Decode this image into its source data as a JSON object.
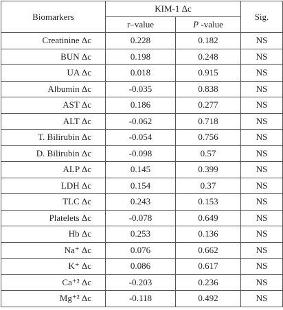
{
  "table": {
    "header": {
      "biomarkers": "Biomarkers",
      "group": "KIM-1 Δc",
      "sig": "Sig.",
      "r": "r–value",
      "p": {
        "italic": "P",
        "rest": " -value"
      }
    },
    "rows": [
      [
        "Creatinine Δc",
        "0.228",
        "0.182",
        "NS"
      ],
      [
        "BUN Δc",
        "0.198",
        "0.248",
        "NS"
      ],
      [
        "UA Δc",
        "0.018",
        "0.915",
        "NS"
      ],
      [
        "Albumin Δc",
        "-0.035",
        "0.838",
        "NS"
      ],
      [
        "AST Δc",
        "0.186",
        "0.277",
        "NS"
      ],
      [
        "ALT Δc",
        "-0.062",
        "0.718",
        "NS"
      ],
      [
        "T. Bilirubin Δc",
        "-0.054",
        "0.756",
        "NS"
      ],
      [
        "D. Bilirubin Δc",
        "-0.098",
        "0.57",
        "NS"
      ],
      [
        "ALP Δc",
        "0.145",
        "0.399",
        "NS"
      ],
      [
        "LDH Δc",
        "0.154",
        "0.37",
        "NS"
      ],
      [
        "TLC Δc",
        "0.243",
        "0.153",
        "NS"
      ],
      [
        "Platelets Δc",
        "-0.078",
        "0.649",
        "NS"
      ],
      [
        "Hb Δc",
        "0.253",
        "0.136",
        "NS"
      ],
      [
        "Na⁺ Δc",
        "0.076",
        "0.662",
        "NS"
      ],
      [
        "K⁺ Δc",
        "0.086",
        "0.617",
        "NS"
      ],
      [
        "Ca⁺² Δc",
        "-0.203",
        "0.236",
        "NS"
      ],
      [
        "Mg⁺² Δc",
        "-0.118",
        "0.492",
        "NS"
      ]
    ]
  }
}
